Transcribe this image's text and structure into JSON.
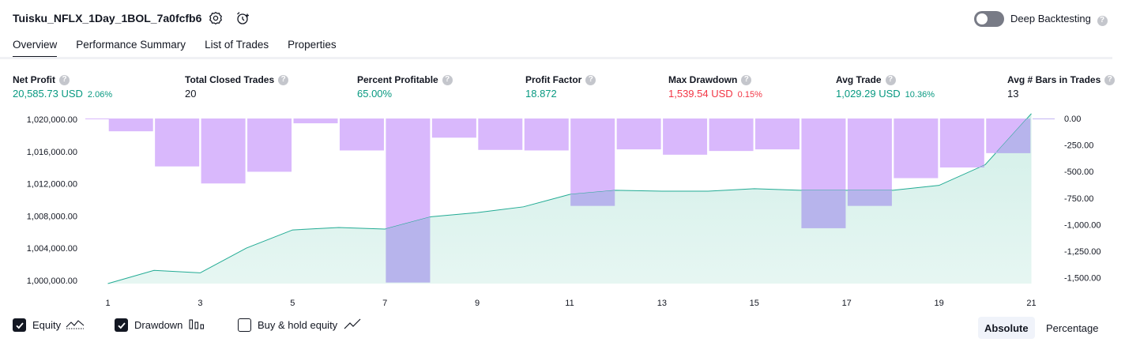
{
  "header": {
    "strategy_name": "Tuisku_NFLX_1Day_1BOL_7a0fcfb6",
    "settings_icon": "gear-icon",
    "alert_icon": "alarm-clock-plus-icon",
    "deep_backtesting_label": "Deep Backtesting",
    "deep_backtesting_enabled": false
  },
  "tabs": [
    {
      "label": "Overview",
      "active": true
    },
    {
      "label": "Performance Summary",
      "active": false
    },
    {
      "label": "List of Trades",
      "active": false
    },
    {
      "label": "Properties",
      "active": false
    }
  ],
  "metrics": {
    "net_profit": {
      "label": "Net Profit",
      "value": "20,585.73 USD",
      "pct": "2.06%"
    },
    "total_closed_trades": {
      "label": "Total Closed Trades",
      "value": "20"
    },
    "percent_profitable": {
      "label": "Percent Profitable",
      "value": "65.00%"
    },
    "profit_factor": {
      "label": "Profit Factor",
      "value": "18.872"
    },
    "max_drawdown": {
      "label": "Max Drawdown",
      "value": "1,539.54 USD",
      "pct": "0.15%"
    },
    "avg_trade": {
      "label": "Avg Trade",
      "value": "1,029.29 USD",
      "pct": "10.36%"
    },
    "avg_bars": {
      "label": "Avg # Bars in Trades",
      "value": "13"
    }
  },
  "help_glyph": "?",
  "chart_data": {
    "type": "area",
    "x_ticks": [
      "1",
      "3",
      "5",
      "7",
      "9",
      "11",
      "13",
      "15",
      "17",
      "19",
      "21"
    ],
    "left_axis_ticks": [
      "1,020,000.00",
      "1,016,000.00",
      "1,012,000.00",
      "1,008,000.00",
      "1,004,000.00",
      "1,000,000.00"
    ],
    "right_axis_ticks": [
      "0.00",
      "-250.00",
      "-500.00",
      "-750.00",
      "-1,000.00",
      "-1,250.00",
      "-1,500.00"
    ],
    "equity_ylim": [
      1000000,
      1020000
    ],
    "drawdown_ylim": [
      -1550,
      0
    ],
    "equity": {
      "x": [
        1,
        2,
        3,
        4,
        5,
        6,
        7,
        8,
        9,
        10,
        11,
        12,
        13,
        14,
        15,
        16,
        17,
        18,
        19,
        20,
        21
      ],
      "values": [
        1000000,
        1001600,
        1001300,
        1004300,
        1006500,
        1006800,
        1006600,
        1008100,
        1008600,
        1009300,
        1010800,
        1011300,
        1011200,
        1011200,
        1011500,
        1011300,
        1011300,
        1011300,
        1011900,
        1014400,
        1020585.73
      ]
    },
    "drawdown": {
      "x": [
        0,
        1,
        2,
        3,
        4,
        5,
        6,
        7,
        8,
        9,
        10,
        11,
        12,
        13,
        14,
        15,
        16,
        17,
        18,
        19,
        20,
        21
      ],
      "values": [
        -5,
        -120,
        -450,
        -610,
        -500,
        -45,
        -300,
        -1539.54,
        -180,
        -295,
        -300,
        -820,
        -290,
        -340,
        -305,
        -290,
        -1030,
        -820,
        -560,
        -460,
        -325,
        -5
      ]
    },
    "colors": {
      "equity_line": "#22ab94",
      "equity_fill": "#d2efe8",
      "drawdown_bar": "#d9b8fc",
      "drawdown_overlap": "#b7b4ec"
    },
    "grid": false
  },
  "legend": {
    "equity": {
      "label": "Equity",
      "checked": true,
      "icon": "equity-line-icon"
    },
    "drawdown": {
      "label": "Drawdown",
      "checked": true,
      "icon": "drawdown-bars-icon"
    },
    "buy_hold": {
      "label": "Buy & hold equity",
      "checked": false,
      "icon": "trend-line-icon"
    }
  },
  "view_mode": {
    "absolute_label": "Absolute",
    "percentage_label": "Percentage",
    "selected": "Absolute"
  }
}
